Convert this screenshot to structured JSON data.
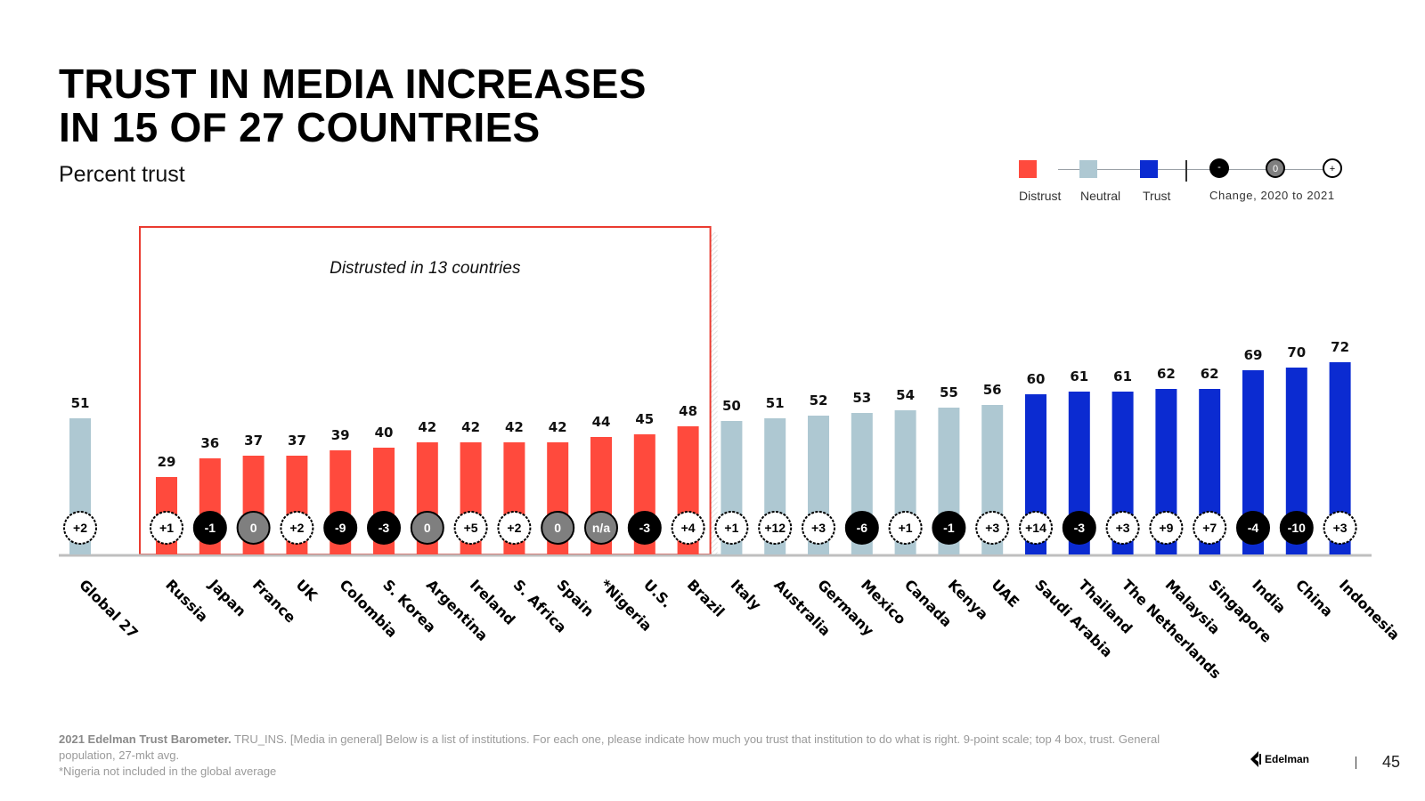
{
  "title": {
    "line1": "TRUST IN MEDIA INCREASES",
    "line2": "IN 15 OF 27 COUNTRIES"
  },
  "subtitle": "Percent trust",
  "legend": {
    "distrust": "Distrust",
    "neutral": "Neutral",
    "trust": "Trust",
    "change_minus": "-",
    "change_zero": "0",
    "change_plus": "+",
    "change_label": "Change, 2020 to 2021"
  },
  "colors": {
    "distrust": "#ff4a3d",
    "neutral": "#aec8d2",
    "trust": "#0b2bd1",
    "badge_neg": "#000000",
    "badge_zero": "#7f7f7f",
    "badge_pos": "#ffffff",
    "box": "#ea3b30"
  },
  "annotation": "Distrusted in 13 countries",
  "chart_data": {
    "type": "bar",
    "title": "Trust in media increases in 15 of 27 countries",
    "ylabel": "Percent trust",
    "ylim": [
      0,
      100
    ],
    "categories": [
      "Global 27",
      "Russia",
      "Japan",
      "France",
      "UK",
      "Colombia",
      "S. Korea",
      "Argentina",
      "Ireland",
      "S. Africa",
      "Spain",
      "*Nigeria",
      "U.S.",
      "Brazil",
      "Italy",
      "Australia",
      "Germany",
      "Mexico",
      "Canada",
      "Kenya",
      "UAE",
      "Saudi Arabia",
      "Thailand",
      "The Netherlands",
      "Malaysia",
      "Singapore",
      "India",
      "China",
      "Indonesia"
    ],
    "values": [
      51,
      29,
      36,
      37,
      37,
      39,
      40,
      42,
      42,
      42,
      42,
      44,
      45,
      48,
      50,
      51,
      52,
      53,
      54,
      55,
      56,
      60,
      61,
      61,
      62,
      62,
      69,
      70,
      72
    ],
    "levels": [
      "neutral",
      "distrust",
      "distrust",
      "distrust",
      "distrust",
      "distrust",
      "distrust",
      "distrust",
      "distrust",
      "distrust",
      "distrust",
      "distrust",
      "distrust",
      "distrust",
      "neutral",
      "neutral",
      "neutral",
      "neutral",
      "neutral",
      "neutral",
      "neutral",
      "trust",
      "trust",
      "trust",
      "trust",
      "trust",
      "trust",
      "trust",
      "trust"
    ],
    "changes": [
      "+2",
      "+1",
      "-1",
      "0",
      "+2",
      "-9",
      "-3",
      "0",
      "+5",
      "+2",
      "0",
      "n/a",
      "-3",
      "+4",
      "+1",
      "+12",
      "+3",
      "-6",
      "+1",
      "-1",
      "+3",
      "+14",
      "-3",
      "+3",
      "+9",
      "+7",
      "-4",
      "-10",
      "+3"
    ],
    "change_types": [
      "pos",
      "pos",
      "neg",
      "zero",
      "pos",
      "neg",
      "neg",
      "zero",
      "pos",
      "pos",
      "zero",
      "zero",
      "neg",
      "pos",
      "pos",
      "pos",
      "pos",
      "neg",
      "pos",
      "neg",
      "pos",
      "pos",
      "neg",
      "pos",
      "pos",
      "pos",
      "neg",
      "neg",
      "pos"
    ]
  },
  "footer": {
    "source_bold": "2021 Edelman Trust Barometer.",
    "source_text": " TRU_INS. [Media in general] Below is a list of institutions. For each one, please indicate how much you trust that institution to do what is right. 9-point scale; top 4 box, trust. General population, 27-mkt avg.",
    "note": "*Nigeria not included in the global average"
  },
  "brand": "Edelman",
  "page_number": "45"
}
